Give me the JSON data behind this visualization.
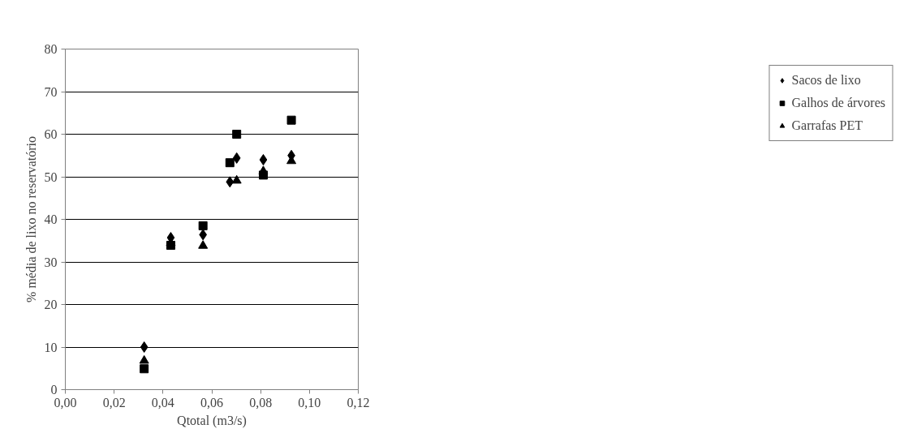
{
  "chart_data": {
    "type": "scatter",
    "xlabel": "Qtotal (m3/s)",
    "ylabel": "% média de lixo no reservatório",
    "x": [
      0.0323,
      0.0432,
      0.0564,
      0.0674,
      0.0702,
      0.0811,
      0.0926
    ],
    "series": [
      {
        "name": "Sacos de lixo",
        "color": "#000000",
        "marker": "diamond",
        "values": [
          10.0,
          35.7,
          36.4,
          48.8,
          54.4,
          54.0,
          55.0
        ]
      },
      {
        "name": "Galhos de árvores",
        "color": "#000000",
        "marker": "square",
        "values": [
          4.9,
          33.9,
          38.5,
          53.3,
          60.0,
          50.4,
          63.3
        ]
      },
      {
        "name": "Garrafas PET",
        "color": "#000000",
        "marker": "triangle",
        "values": [
          6.8,
          34.5,
          33.8,
          null,
          49.1,
          51.3,
          53.7
        ]
      }
    ],
    "xlim": [
      0,
      0.12
    ],
    "xticks": [
      {
        "value": 0,
        "label": "0,00"
      },
      {
        "value": 0.02,
        "label": "0,02"
      },
      {
        "value": 0.04,
        "label": "0,04"
      },
      {
        "value": 0.06,
        "label": "0,06"
      },
      {
        "value": 0.08,
        "label": "0,08"
      },
      {
        "value": 0.1,
        "label": "0,10"
      },
      {
        "value": 0.12,
        "label": "0,12"
      }
    ],
    "ylim": [
      0,
      80
    ],
    "yticks": [
      0,
      10,
      20,
      30,
      40,
      50,
      60,
      70,
      80
    ],
    "grid": "y",
    "legend": "right"
  }
}
